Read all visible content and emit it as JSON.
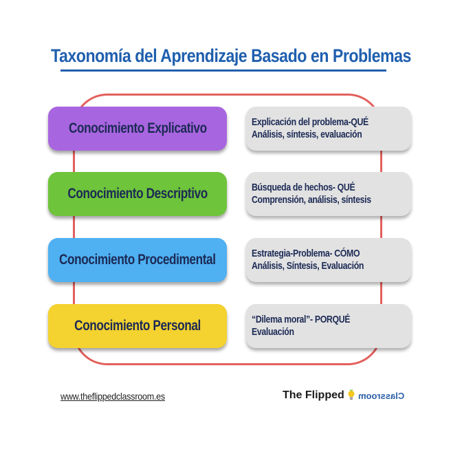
{
  "title": "Taxonomía del Aprendizaje Basado en Problemas",
  "rows": [
    {
      "concept": "Conocimiento Explicativo",
      "concept_color": "#a865e0",
      "line1": "Explicación del problema-QUÉ",
      "line2": "Análisis, síntesis, evaluación"
    },
    {
      "concept": "Conocimiento Descriptivo",
      "concept_color": "#6ec43a",
      "line1": "Búsqueda de hechos- QUÉ",
      "line2": "Comprensión, análisis, síntesis"
    },
    {
      "concept": "Conocimiento Procedimental",
      "concept_color": "#4fb0f2",
      "line1": "Estrategia-Problema- CÓMO",
      "line2": "Análisis, Síntesis, Evaluación"
    },
    {
      "concept": "Conocimiento Personal",
      "concept_color": "#f4d22f",
      "line1": "“Dilema moral”- PORQUÉ",
      "line2": "Evaluación"
    }
  ],
  "footer": {
    "url": "www.theflippedclassroom.es",
    "brand_main": "The Flipped",
    "brand_mirrored": "Classroom",
    "brand_icon": "lightbulb-icon"
  },
  "colors": {
    "title": "#1f5fae",
    "frame": "#e2605d",
    "detail_box": "#e2e2e2",
    "text_dark": "#1c2a55"
  }
}
